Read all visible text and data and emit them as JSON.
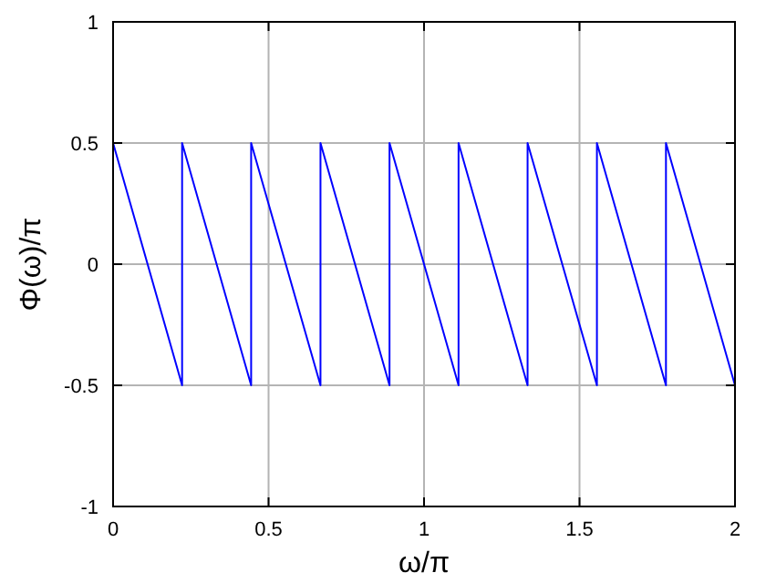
{
  "chart_data": {
    "type": "line",
    "xlabel": "ω/π",
    "ylabel": "Φ(ω)/π",
    "xlim": [
      0,
      2
    ],
    "ylim": [
      -1,
      1
    ],
    "xticks": [
      0,
      0.5,
      1,
      1.5,
      2
    ],
    "yticks": [
      -1,
      -0.5,
      0,
      0.5,
      1
    ],
    "grid": true,
    "series": [
      {
        "color": "#0000ff",
        "x": [
          0,
          0.222,
          0.222,
          0.444,
          0.444,
          0.667,
          0.667,
          0.889,
          0.889,
          1.111,
          1.111,
          1.333,
          1.333,
          1.556,
          1.556,
          1.778,
          1.778,
          2
        ],
        "values": [
          0.5,
          -0.5,
          0.5,
          -0.5,
          0.5,
          -0.5,
          0.5,
          -0.5,
          0.5,
          -0.5,
          0.5,
          -0.5,
          0.5,
          -0.5,
          0.5,
          -0.5,
          0.5,
          -0.5
        ]
      }
    ]
  }
}
